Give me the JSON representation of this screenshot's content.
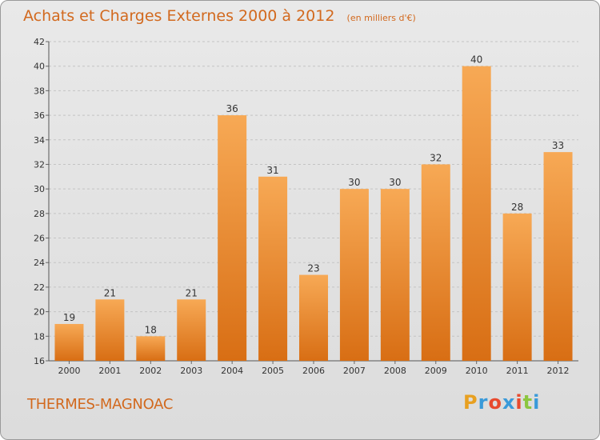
{
  "chart_data": {
    "type": "bar",
    "title": "Achats et Charges Externes 2000 à 2012",
    "subtitle": "(en milliers d'€)",
    "categories": [
      "2000",
      "2001",
      "2002",
      "2003",
      "2004",
      "2005",
      "2006",
      "2007",
      "2008",
      "2009",
      "2010",
      "2011",
      "2012"
    ],
    "values": [
      19,
      21,
      18,
      21,
      36,
      31,
      23,
      30,
      30,
      32,
      40,
      28,
      33
    ],
    "ylim": [
      16,
      42
    ],
    "yticks": [
      16,
      18,
      20,
      22,
      24,
      26,
      28,
      30,
      32,
      34,
      36,
      38,
      40,
      42
    ],
    "grid": true,
    "xlabel": "",
    "ylabel": "",
    "bar_color": "#f0923a"
  },
  "footer": {
    "place": "THERMES-MAGNOAC",
    "logo_letters": [
      "P",
      "r",
      "o",
      "x",
      "i",
      "t",
      "i"
    ],
    "logo_colors": [
      "#e8a020",
      "#3a9ad9",
      "#e84a2e",
      "#3a9ad9",
      "#e84a2e",
      "#8cc63f",
      "#3a9ad9"
    ]
  }
}
